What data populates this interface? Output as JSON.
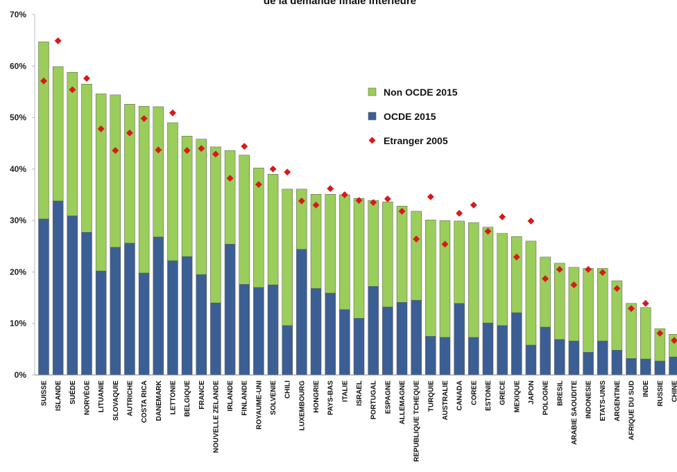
{
  "chart_data": {
    "type": "stacked_bar",
    "title": "de la demande finale intérieure",
    "categories": [
      "SUISSE",
      "ISLANDE",
      "SUÉDE",
      "NORVÈGE",
      "LITUANIE",
      "SLOVAQUIE",
      "AUTRICHE",
      "COSTA RICA",
      "DANEMARK",
      "LETTONIE",
      "BELGIQUE",
      "FRANCE",
      "NOUVELLE ZELANDE",
      "IRLANDE",
      "FINLANDE",
      "ROYAUME-UNI",
      "SOLVENIE",
      "CHILI",
      "LUXEMBOURG",
      "HONGRIE",
      "PAYS-BAS",
      "ITALIE",
      "ISRAEL",
      "PORTUGAL",
      "ESPAGNE",
      "ALLEMAGNE",
      "REPUBLIQUE TCHEQUE",
      "TURQUIE",
      "AUSTRALIE",
      "CANADA",
      "COREE",
      "ESTONIE",
      "GRECE",
      "MEXIQUE",
      "JAPON",
      "POLOGNE",
      "BRESIL",
      "ARABIE SAOUDITE",
      "INDONESIE",
      "ETATS-UNIS",
      "ARGENTINE",
      "AFRIQUE DU SUD",
      "INDE",
      "RUSSIE",
      "CHINE"
    ],
    "highlight": [
      1,
      2,
      3,
      8,
      14
    ],
    "highlight_color": "#e8312f",
    "series": [
      {
        "name": "OCDE 2015",
        "color": "#3b5f95",
        "kind": "bar",
        "values": [
          30.3,
          33.8,
          30.9,
          27.7,
          20.2,
          24.8,
          25.6,
          19.8,
          26.8,
          22.2,
          23.0,
          19.5,
          14.0,
          25.4,
          17.6,
          17.0,
          17.5,
          9.6,
          24.4,
          16.8,
          15.9,
          12.7,
          11.0,
          17.2,
          13.2,
          14.1,
          14.5,
          7.5,
          7.3,
          13.9,
          7.3,
          10.1,
          9.6,
          12.1,
          5.8,
          9.3,
          6.9,
          6.6,
          4.4,
          6.6,
          4.8,
          3.2,
          3.1,
          2.7,
          3.5
        ]
      },
      {
        "name": "Non OCDE 2015",
        "color": "#9acd5a",
        "kind": "bar",
        "values": [
          34.4,
          26.1,
          27.9,
          28.8,
          34.4,
          29.6,
          27.0,
          32.4,
          25.3,
          26.8,
          23.4,
          26.3,
          30.3,
          18.2,
          25.1,
          23.2,
          21.5,
          26.5,
          11.7,
          18.3,
          19.2,
          22.3,
          23.3,
          16.7,
          20.4,
          18.7,
          17.3,
          22.6,
          22.7,
          16.0,
          22.3,
          18.6,
          17.9,
          14.8,
          20.2,
          13.6,
          14.8,
          14.3,
          16.3,
          14.1,
          13.5,
          10.7,
          10.0,
          6.3,
          4.4
        ]
      },
      {
        "name": "Etranger 2005",
        "color": "#d7191c",
        "kind": "marker",
        "values": [
          57.1,
          64.9,
          55.4,
          57.6,
          47.8,
          43.6,
          47.0,
          49.8,
          43.7,
          50.9,
          43.6,
          44.0,
          42.9,
          38.2,
          44.4,
          37.0,
          40.0,
          39.4,
          33.8,
          33.0,
          36.2,
          35.0,
          33.9,
          33.5,
          34.2,
          31.8,
          26.4,
          34.6,
          25.4,
          31.4,
          33.0,
          27.9,
          30.7,
          22.9,
          29.9,
          18.7,
          20.5,
          17.5,
          20.5,
          19.9,
          16.8,
          12.9,
          13.9,
          8.1,
          6.7
        ]
      }
    ],
    "legend_order": [
      1,
      0,
      2
    ],
    "ylim": [
      0,
      70
    ],
    "yticks": [
      {
        "value": 0,
        "label": "0%"
      },
      {
        "value": 10,
        "label": "10%"
      },
      {
        "value": 20,
        "label": "20%"
      },
      {
        "value": 30,
        "label": "30%"
      },
      {
        "value": 40,
        "label": "40%"
      },
      {
        "value": 50,
        "label": "50%"
      },
      {
        "value": 60,
        "label": "60%"
      },
      {
        "value": 70,
        "label": "70%"
      }
    ]
  }
}
